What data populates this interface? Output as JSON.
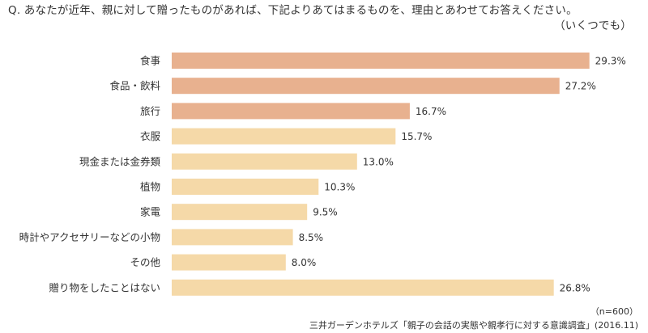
{
  "question": {
    "line1": "Q. あなたが近年、親に対して贈ったものがあれば、下記よりあてはまるものを、理由とあわせてお答えください。",
    "line2": "（いくつでも）"
  },
  "chart_data": {
    "type": "bar",
    "orientation": "horizontal",
    "categories": [
      "食事",
      "食品・飲料",
      "旅行",
      "衣服",
      "現金または金券類",
      "植物",
      "家電",
      "時計やアクセサリーなどの小物",
      "その他",
      "贈り物をしたことはない"
    ],
    "values": [
      29.3,
      27.2,
      16.7,
      15.7,
      13.0,
      10.3,
      9.5,
      8.5,
      8.0,
      26.8
    ],
    "value_labels": [
      "29.3%",
      "27.2%",
      "16.7%",
      "15.7%",
      "13.0%",
      "10.3%",
      "9.5%",
      "8.5%",
      "8.0%",
      "26.8%"
    ],
    "unit": "%",
    "xlim": [
      0,
      30
    ],
    "grid": false,
    "colors": {
      "top3": "#E8B18F",
      "others": "#F5D9A8"
    },
    "bar_color_groups": [
      "top3",
      "top3",
      "top3",
      "others",
      "others",
      "others",
      "others",
      "others",
      "others",
      "others"
    ]
  },
  "footer": {
    "n_note": "（n=600）",
    "source": "三井ガーデンホテルズ「親子の会話の実態や親孝行に対する意識調査」(2016.11)"
  }
}
